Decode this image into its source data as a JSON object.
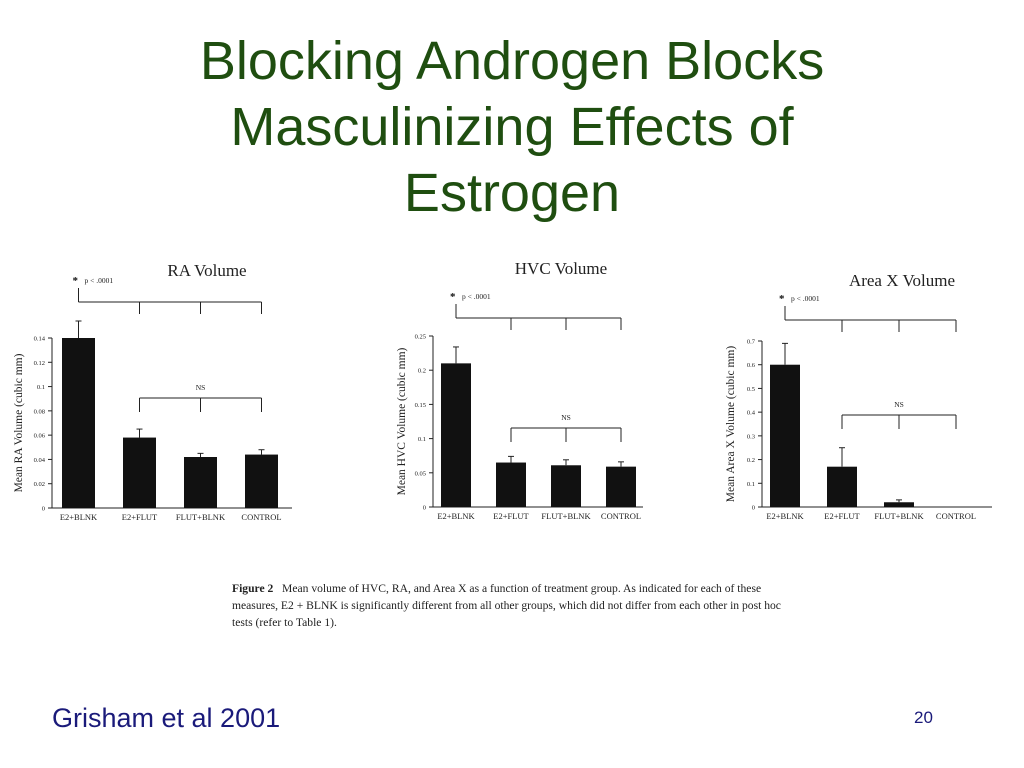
{
  "slide": {
    "title_lines": [
      "Blocking Androgen Blocks",
      "Masculinizing Effects of",
      "Estrogen"
    ],
    "citation": "Grisham et al 2001",
    "page_number": "20"
  },
  "caption": {
    "label": "Figure 2",
    "text": "Mean volume of HVC, RA, and Area X as a function of treatment group. As indicated for each of these measures, E2 + BLNK is significantly different from all other groups, which did not differ from each other in post hoc tests (refer to Table 1)."
  },
  "chart_data": [
    {
      "type": "bar",
      "title": "RA Volume",
      "ylabel": "Mean RA Volume (cubic mm)",
      "categories": [
        "E2+BLNK",
        "E2+FLUT",
        "FLUT+BLNK",
        "CONTROL"
      ],
      "values": [
        0.14,
        0.058,
        0.042,
        0.044
      ],
      "errors": [
        0.014,
        0.007,
        0.003,
        0.004
      ],
      "ylim": [
        0,
        0.14
      ],
      "yticks": [
        0,
        0.02,
        0.04,
        0.06,
        0.08,
        0.1,
        0.12,
        0.14
      ],
      "ytick_labels": [
        "0",
        "0.02",
        "0.04",
        "0.06",
        "0.08",
        "0.1",
        "0.12",
        "0.14"
      ],
      "sig_label": "p < .0001",
      "ns_label": "NS"
    },
    {
      "type": "bar",
      "title": "HVC Volume",
      "ylabel": "Mean HVC Volume (cubic mm)",
      "categories": [
        "E2+BLNK",
        "E2+FLUT",
        "FLUT+BLNK",
        "CONTROL"
      ],
      "values": [
        0.21,
        0.065,
        0.061,
        0.059
      ],
      "errors": [
        0.024,
        0.009,
        0.008,
        0.007
      ],
      "ylim": [
        0,
        0.25
      ],
      "yticks": [
        0,
        0.05,
        0.1,
        0.15,
        0.2,
        0.25
      ],
      "ytick_labels": [
        "0",
        "0.05",
        "0.1",
        "0.15",
        "0.2",
        "0.25"
      ],
      "sig_label": "p < .0001",
      "ns_label": "NS"
    },
    {
      "type": "bar",
      "title": "Area X Volume",
      "ylabel": "Mean Area X Volume (cubic mm)",
      "categories": [
        "E2+BLNK",
        "E2+FLUT",
        "FLUT+BLNK",
        "CONTROL"
      ],
      "values": [
        0.6,
        0.17,
        0.02,
        0
      ],
      "errors": [
        0.09,
        0.08,
        0.01,
        0
      ],
      "ylim": [
        0,
        0.7
      ],
      "yticks": [
        0,
        0.1,
        0.2,
        0.3,
        0.4,
        0.5,
        0.6,
        0.7
      ],
      "ytick_labels": [
        "0",
        "0.1",
        "0.2",
        "0.3",
        "0.4",
        "0.5",
        "0.6",
        "0.7"
      ],
      "sig_label": "p < .0001",
      "ns_label": "NS"
    }
  ]
}
